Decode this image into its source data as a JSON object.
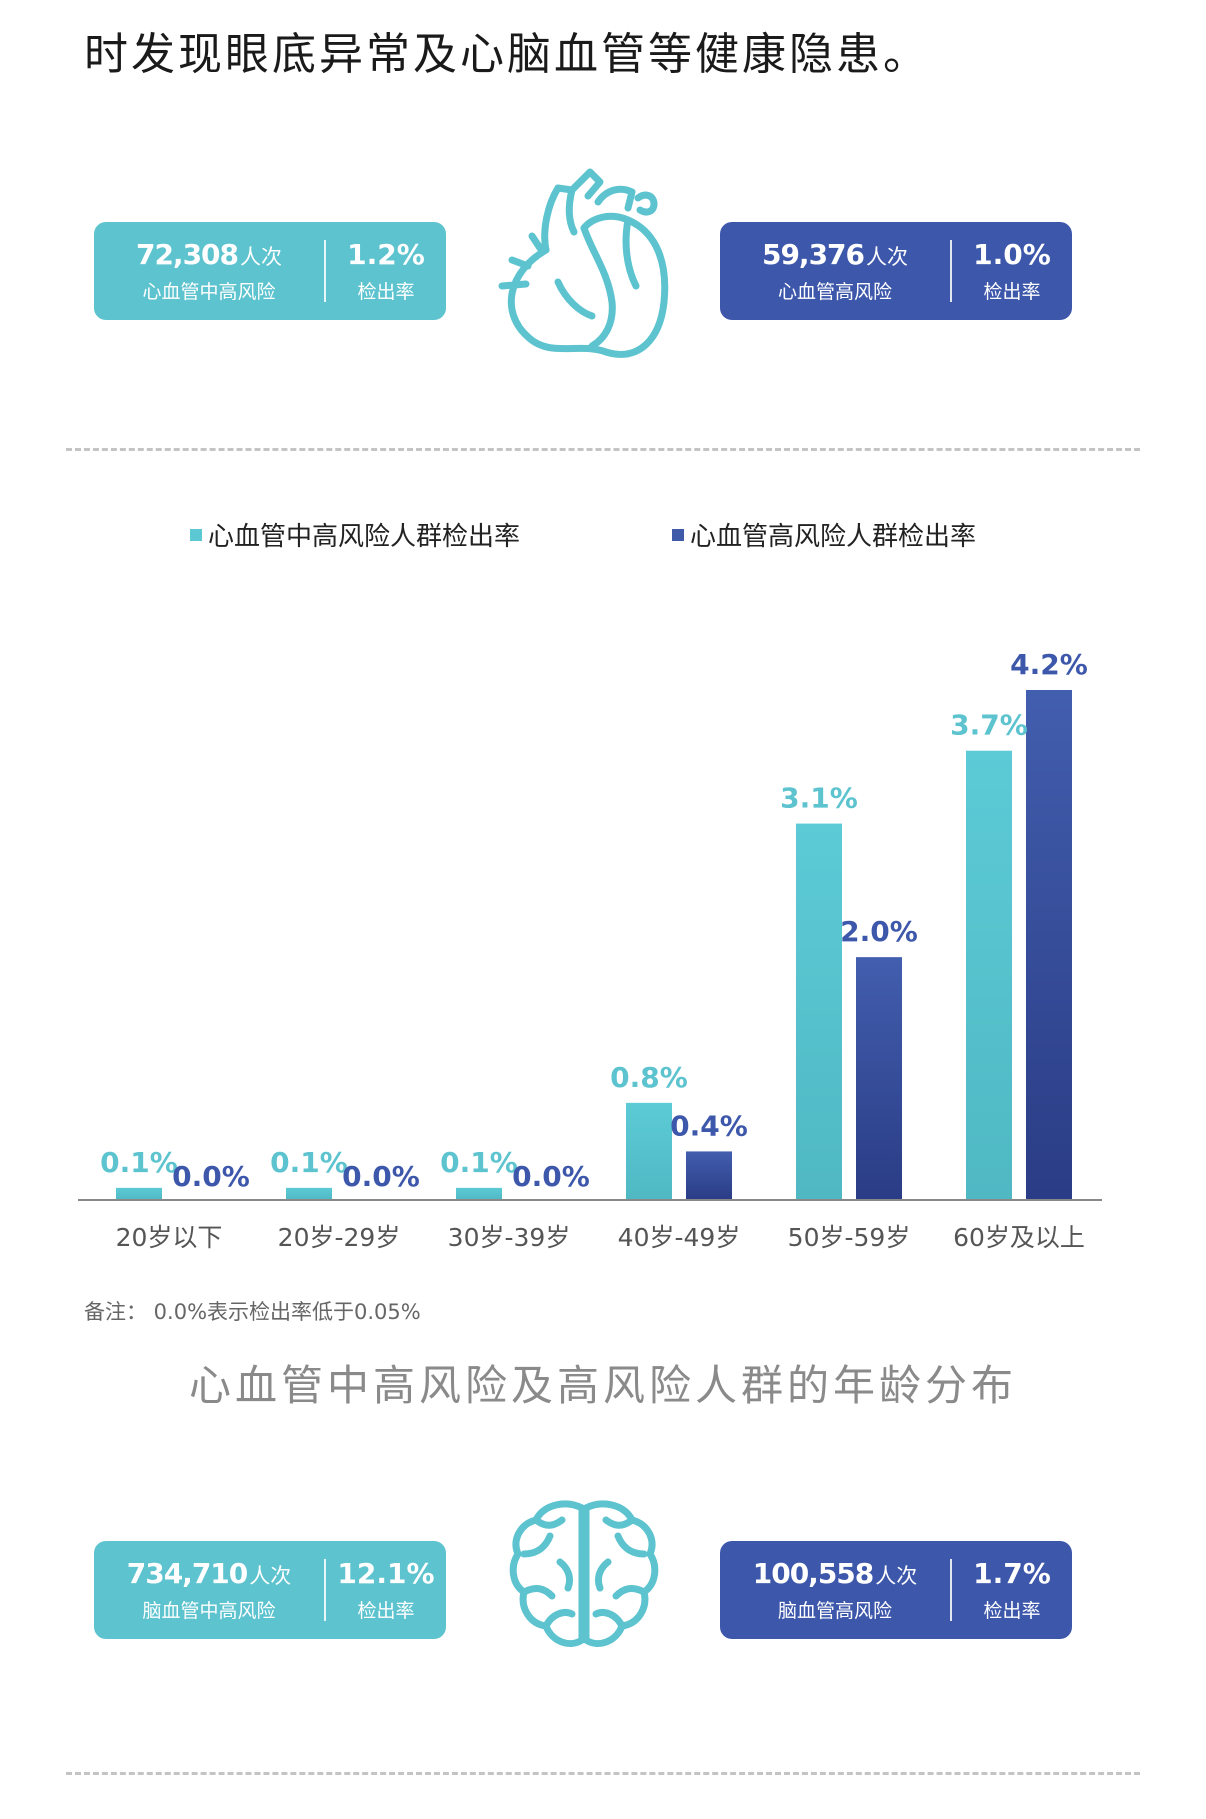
{
  "intro_text": "时发现眼底异常及心脑血管等健康隐患。",
  "heart_section": {
    "left_card": {
      "count": "72,308",
      "unit": "人次",
      "label": "心血管中高风险",
      "rate": "1.2%",
      "rate_label": "检出率"
    },
    "right_card": {
      "count": "59,376",
      "unit": "人次",
      "label": "心血管高风险",
      "rate": "1.0%",
      "rate_label": "检出率"
    },
    "icon": "heart-icon"
  },
  "brain_section": {
    "left_card": {
      "count": "734,710",
      "unit": "人次",
      "label": "脑血管中高风险",
      "rate": "12.1%",
      "rate_label": "检出率"
    },
    "right_card": {
      "count": "100,558",
      "unit": "人次",
      "label": "脑血管高风险",
      "rate": "1.7%",
      "rate_label": "检出率"
    },
    "icon": "brain-icon"
  },
  "chart_data": {
    "type": "bar",
    "title": "心血管中高风险及高风险人群的年龄分布",
    "categories": [
      "20岁以下",
      "20岁-29岁",
      "30岁-39岁",
      "40岁-49岁",
      "50岁-59岁",
      "60岁及以上"
    ],
    "series": [
      {
        "name": "心血管中高风险人群检出率",
        "values": [
          0.1,
          0.1,
          0.1,
          0.8,
          3.1,
          3.7
        ],
        "labels": [
          "0.1%",
          "0.1%",
          "0.1%",
          "0.8%",
          "3.1%",
          "3.7%"
        ],
        "color": "#5cc8d3"
      },
      {
        "name": "心血管高风险人群检出率",
        "values": [
          0.0,
          0.0,
          0.0,
          0.4,
          2.0,
          4.2
        ],
        "labels": [
          "0.0%",
          "0.0%",
          "0.0%",
          "0.4%",
          "2.0%",
          "4.2%"
        ],
        "color": "#3f5aa8"
      }
    ],
    "ylim": [
      0,
      4.2
    ],
    "grid": false,
    "legend_position": "top"
  },
  "note": "备注：  0.0%表示检出率低于0.05%",
  "colors": {
    "teal": "#5cc3cf",
    "navy": "#3d57ab",
    "text_gray": "#8a8a8a"
  }
}
